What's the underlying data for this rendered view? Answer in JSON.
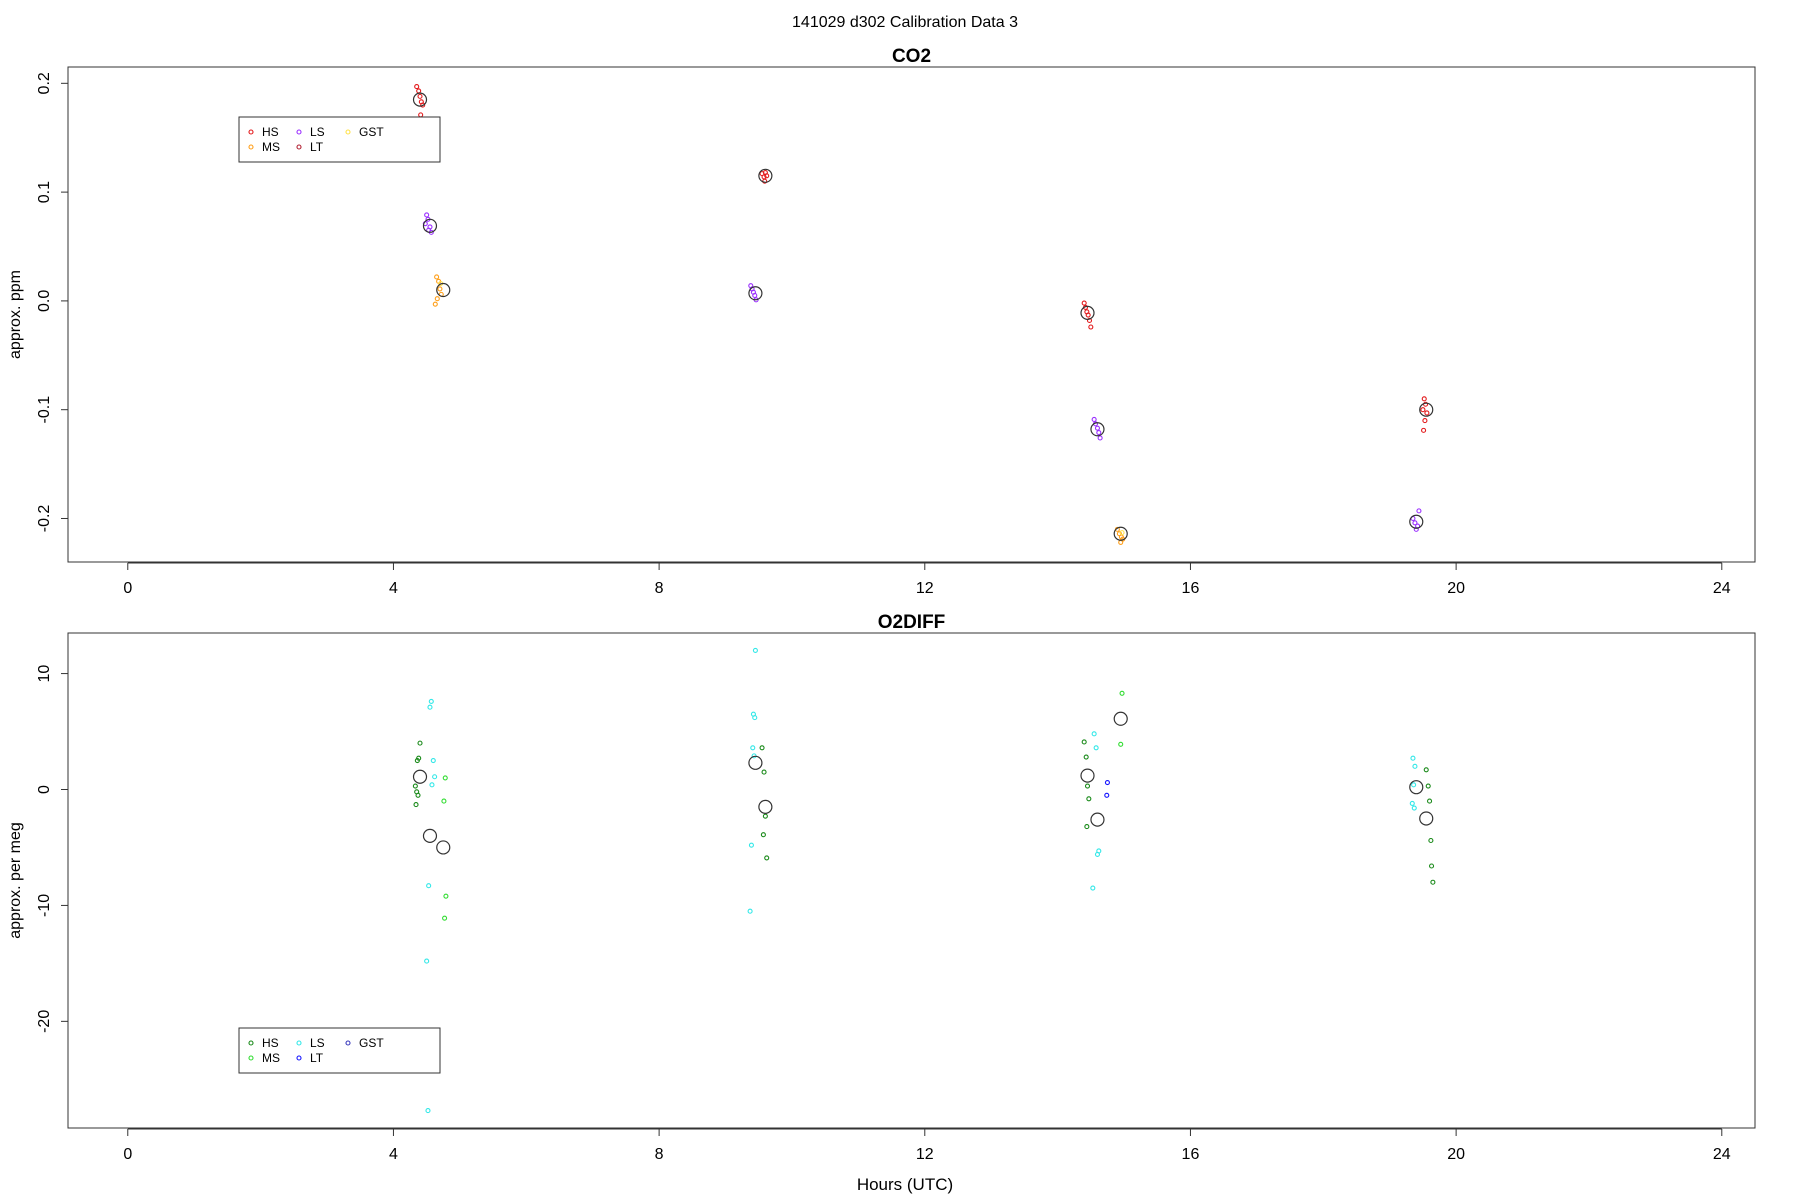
{
  "figure": {
    "title": "141029   d302   Calibration Data 3",
    "xlabel": "Hours (UTC)"
  },
  "chart_data": [
    {
      "type": "scatter",
      "title": "CO2",
      "ylabel": "approx. ppm",
      "xlim": [
        -0.9,
        24.5
      ],
      "ylim": [
        -0.24,
        0.215
      ],
      "xticks": [
        0,
        4,
        8,
        12,
        16,
        20,
        24
      ],
      "yticks": [
        -0.2,
        -0.1,
        0.0,
        0.1,
        0.2
      ],
      "ytick_labels": [
        "-0.2",
        "-0.1",
        "0.0",
        "0.1",
        "0.2"
      ],
      "legend": {
        "position": "top-left",
        "entries": [
          "HS",
          "MS",
          "LS",
          "LT",
          "GST"
        ],
        "colors": [
          "#e31a1c",
          "#ff9f1a",
          "#9b30ff",
          "#b22234",
          "#ffe24a"
        ]
      },
      "series": [
        {
          "name": "HS",
          "color": "#e31a1c",
          "points": [
            [
              4.35,
              0.197
            ],
            [
              4.38,
              0.193
            ],
            [
              4.4,
              0.188
            ],
            [
              4.42,
              0.183
            ],
            [
              4.44,
              0.18
            ],
            [
              4.41,
              0.171
            ],
            [
              9.55,
              0.117
            ],
            [
              9.58,
              0.114
            ],
            [
              9.6,
              0.118
            ],
            [
              9.62,
              0.115
            ],
            [
              9.59,
              0.11
            ],
            [
              14.4,
              -0.002
            ],
            [
              14.42,
              -0.006
            ],
            [
              14.44,
              -0.01
            ],
            [
              14.46,
              -0.013
            ],
            [
              14.48,
              -0.018
            ],
            [
              14.5,
              -0.024
            ],
            [
              19.52,
              -0.09
            ],
            [
              19.54,
              -0.095
            ],
            [
              19.5,
              -0.1
            ],
            [
              19.56,
              -0.103
            ],
            [
              19.53,
              -0.11
            ],
            [
              19.51,
              -0.119
            ]
          ]
        },
        {
          "name": "MS",
          "color": "#ff9f1a",
          "points": [
            [
              4.65,
              0.022
            ],
            [
              4.68,
              0.018
            ],
            [
              4.7,
              0.011
            ],
            [
              4.72,
              0.006
            ],
            [
              4.66,
              0.002
            ],
            [
              4.63,
              -0.003
            ],
            [
              14.9,
              -0.21
            ],
            [
              14.93,
              -0.214
            ],
            [
              14.96,
              -0.217
            ],
            [
              14.98,
              -0.219
            ],
            [
              14.95,
              -0.222
            ]
          ]
        },
        {
          "name": "LS",
          "color": "#9b30ff",
          "points": [
            [
              4.5,
              0.079
            ],
            [
              4.52,
              0.075
            ],
            [
              4.48,
              0.071
            ],
            [
              4.55,
              0.068
            ],
            [
              4.53,
              0.065
            ],
            [
              4.57,
              0.063
            ],
            [
              9.38,
              0.014
            ],
            [
              9.4,
              0.011
            ],
            [
              9.42,
              0.008
            ],
            [
              9.44,
              0.005
            ],
            [
              9.46,
              0.001
            ],
            [
              14.55,
              -0.109
            ],
            [
              14.57,
              -0.113
            ],
            [
              14.6,
              -0.117
            ],
            [
              14.62,
              -0.121
            ],
            [
              14.64,
              -0.126
            ],
            [
              19.35,
              -0.2
            ],
            [
              19.38,
              -0.204
            ],
            [
              19.42,
              -0.207
            ],
            [
              19.44,
              -0.193
            ],
            [
              19.4,
              -0.21
            ]
          ]
        },
        {
          "name": "LT",
          "color": "#b22234",
          "points": []
        },
        {
          "name": "GST",
          "color": "#ffe24a",
          "points": [
            [
              4.71,
              0.016
            ],
            [
              14.97,
              -0.213
            ]
          ]
        }
      ],
      "means": [
        [
          4.4,
          0.185
        ],
        [
          4.55,
          0.069
        ],
        [
          4.75,
          0.01
        ],
        [
          9.6,
          0.115
        ],
        [
          9.45,
          0.007
        ],
        [
          14.45,
          -0.011
        ],
        [
          14.6,
          -0.118
        ],
        [
          14.95,
          -0.214
        ],
        [
          19.55,
          -0.1
        ],
        [
          19.4,
          -0.203
        ]
      ]
    },
    {
      "type": "scatter",
      "title": "O2DIFF",
      "ylabel": "approx. per meg",
      "xlim": [
        -0.9,
        24.5
      ],
      "ylim": [
        -29.2,
        13.5
      ],
      "xticks": [
        0,
        4,
        8,
        12,
        16,
        20,
        24
      ],
      "yticks": [
        -20,
        -10,
        0,
        10
      ],
      "ytick_labels": [
        "-20",
        "-10",
        "0",
        "10"
      ],
      "legend": {
        "position": "bottom-left",
        "entries": [
          "HS",
          "MS",
          "LS",
          "LT",
          "GST"
        ],
        "colors": [
          "#1a8a1a",
          "#33dd33",
          "#33e8e8",
          "#1515ff",
          "#3b3bbd"
        ]
      },
      "series": [
        {
          "name": "HS",
          "color": "#1a8a1a",
          "points": [
            [
              4.4,
              4.0
            ],
            [
              4.38,
              2.7
            ],
            [
              4.36,
              2.5
            ],
            [
              4.33,
              0.3
            ],
            [
              4.35,
              -0.2
            ],
            [
              4.37,
              -0.5
            ],
            [
              4.34,
              -1.3
            ],
            [
              9.55,
              3.6
            ],
            [
              9.58,
              1.5
            ],
            [
              9.6,
              -2.3
            ],
            [
              9.57,
              -3.9
            ],
            [
              9.62,
              -5.9
            ],
            [
              14.4,
              4.1
            ],
            [
              14.43,
              2.8
            ],
            [
              14.45,
              0.3
            ],
            [
              14.47,
              -0.8
            ],
            [
              14.44,
              -3.2
            ],
            [
              19.55,
              1.7
            ],
            [
              19.58,
              0.3
            ],
            [
              19.6,
              -1.0
            ],
            [
              19.62,
              -4.4
            ],
            [
              19.63,
              -6.6
            ],
            [
              19.65,
              -8.0
            ]
          ]
        },
        {
          "name": "MS",
          "color": "#33dd33",
          "points": [
            [
              4.78,
              1.0
            ],
            [
              4.76,
              -1.0
            ],
            [
              4.79,
              -9.2
            ],
            [
              4.77,
              -11.1
            ],
            [
              14.97,
              8.3
            ],
            [
              14.95,
              3.9
            ]
          ]
        },
        {
          "name": "LS",
          "color": "#33e8e8",
          "points": [
            [
              4.57,
              7.6
            ],
            [
              4.55,
              7.1
            ],
            [
              4.6,
              2.5
            ],
            [
              4.62,
              1.1
            ],
            [
              4.58,
              0.4
            ],
            [
              4.53,
              -8.3
            ],
            [
              4.5,
              -14.8
            ],
            [
              4.52,
              -27.7
            ],
            [
              9.45,
              12.0
            ],
            [
              9.42,
              6.5
            ],
            [
              9.44,
              6.2
            ],
            [
              9.41,
              3.6
            ],
            [
              9.43,
              2.9
            ],
            [
              9.39,
              -4.8
            ],
            [
              9.37,
              -10.5
            ],
            [
              14.55,
              4.8
            ],
            [
              14.58,
              3.6
            ],
            [
              14.6,
              -5.6
            ],
            [
              14.62,
              -5.3
            ],
            [
              14.53,
              -8.5
            ],
            [
              19.35,
              2.7
            ],
            [
              19.38,
              2.0
            ],
            [
              19.36,
              0.4
            ],
            [
              19.34,
              -1.2
            ],
            [
              19.37,
              -1.6
            ]
          ]
        },
        {
          "name": "LT",
          "color": "#1515ff",
          "points": [
            [
              14.75,
              0.6
            ],
            [
              14.74,
              -0.5
            ]
          ]
        },
        {
          "name": "GST",
          "color": "#3b3bbd",
          "points": []
        }
      ],
      "means": [
        [
          4.4,
          1.1
        ],
        [
          4.55,
          -4.0
        ],
        [
          4.75,
          -5.0
        ],
        [
          9.45,
          2.3
        ],
        [
          9.6,
          -1.5
        ],
        [
          14.45,
          1.2
        ],
        [
          14.6,
          -2.6
        ],
        [
          14.95,
          6.1
        ],
        [
          19.4,
          0.2
        ],
        [
          19.55,
          -2.5
        ]
      ]
    }
  ]
}
